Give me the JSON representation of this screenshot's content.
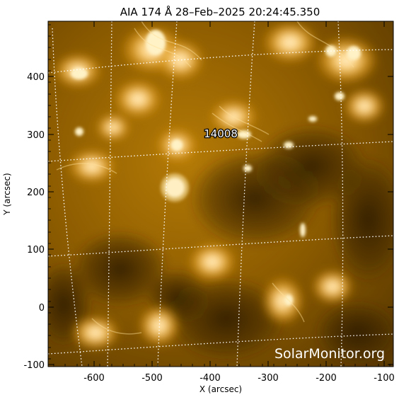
{
  "title": "AIA 174 Å 28–Feb–2025 20:24:45.350",
  "axes": {
    "xlabel": "X (arcsec)",
    "ylabel": "Y (arcsec)",
    "x_ticks": [
      "-600",
      "-500",
      "-400",
      "-300",
      "-200",
      "-100"
    ],
    "y_ticks": [
      "400",
      "300",
      "200",
      "100",
      "0",
      "-100"
    ]
  },
  "region_label": "14008",
  "watermark": "SolarMonitor.org",
  "colors": {
    "background": "#ffffff",
    "frame": "#000000",
    "image_dark": "#2a1b00",
    "image_mid": "#9b6a00",
    "image_bright": "#ffd27a",
    "grid": "#ffffff"
  }
}
